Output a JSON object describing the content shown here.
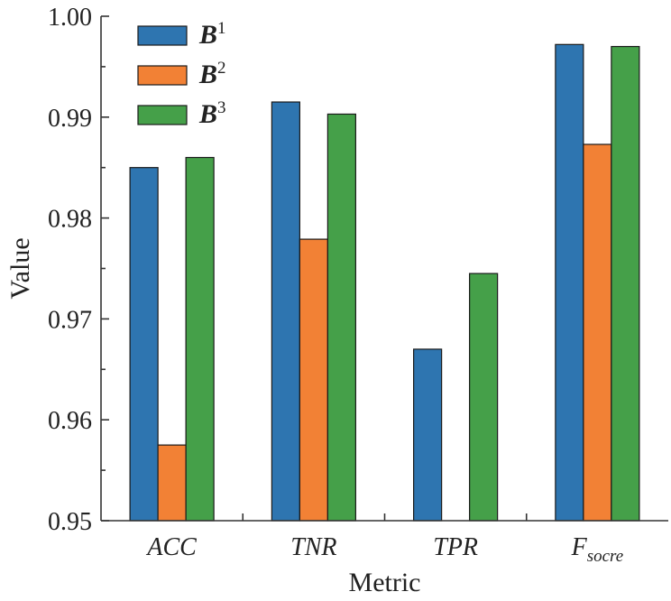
{
  "chart_data": {
    "type": "bar",
    "xlabel": "Metric",
    "ylabel": "Value",
    "ylim": [
      0.95,
      1.0
    ],
    "yticks": [
      "0.95",
      "0.96",
      "0.97",
      "0.98",
      "0.99",
      "1.00"
    ],
    "categories": [
      {
        "main": "ACC",
        "sub": ""
      },
      {
        "main": "TNR",
        "sub": ""
      },
      {
        "main": "TPR",
        "sub": ""
      },
      {
        "main": "F",
        "sub": "socre"
      }
    ],
    "legend_position": "top-left",
    "series": [
      {
        "name": "B",
        "sup": "1",
        "color": "#2e75b0",
        "values": [
          0.985,
          0.9915,
          0.967,
          0.9972
        ]
      },
      {
        "name": "B",
        "sup": "2",
        "color": "#f28135",
        "values": [
          0.9575,
          0.9779,
          null,
          0.9873
        ]
      },
      {
        "name": "B",
        "sup": "3",
        "color": "#45a049",
        "values": [
          0.986,
          0.9903,
          0.9745,
          0.997
        ]
      }
    ],
    "grid": false
  }
}
